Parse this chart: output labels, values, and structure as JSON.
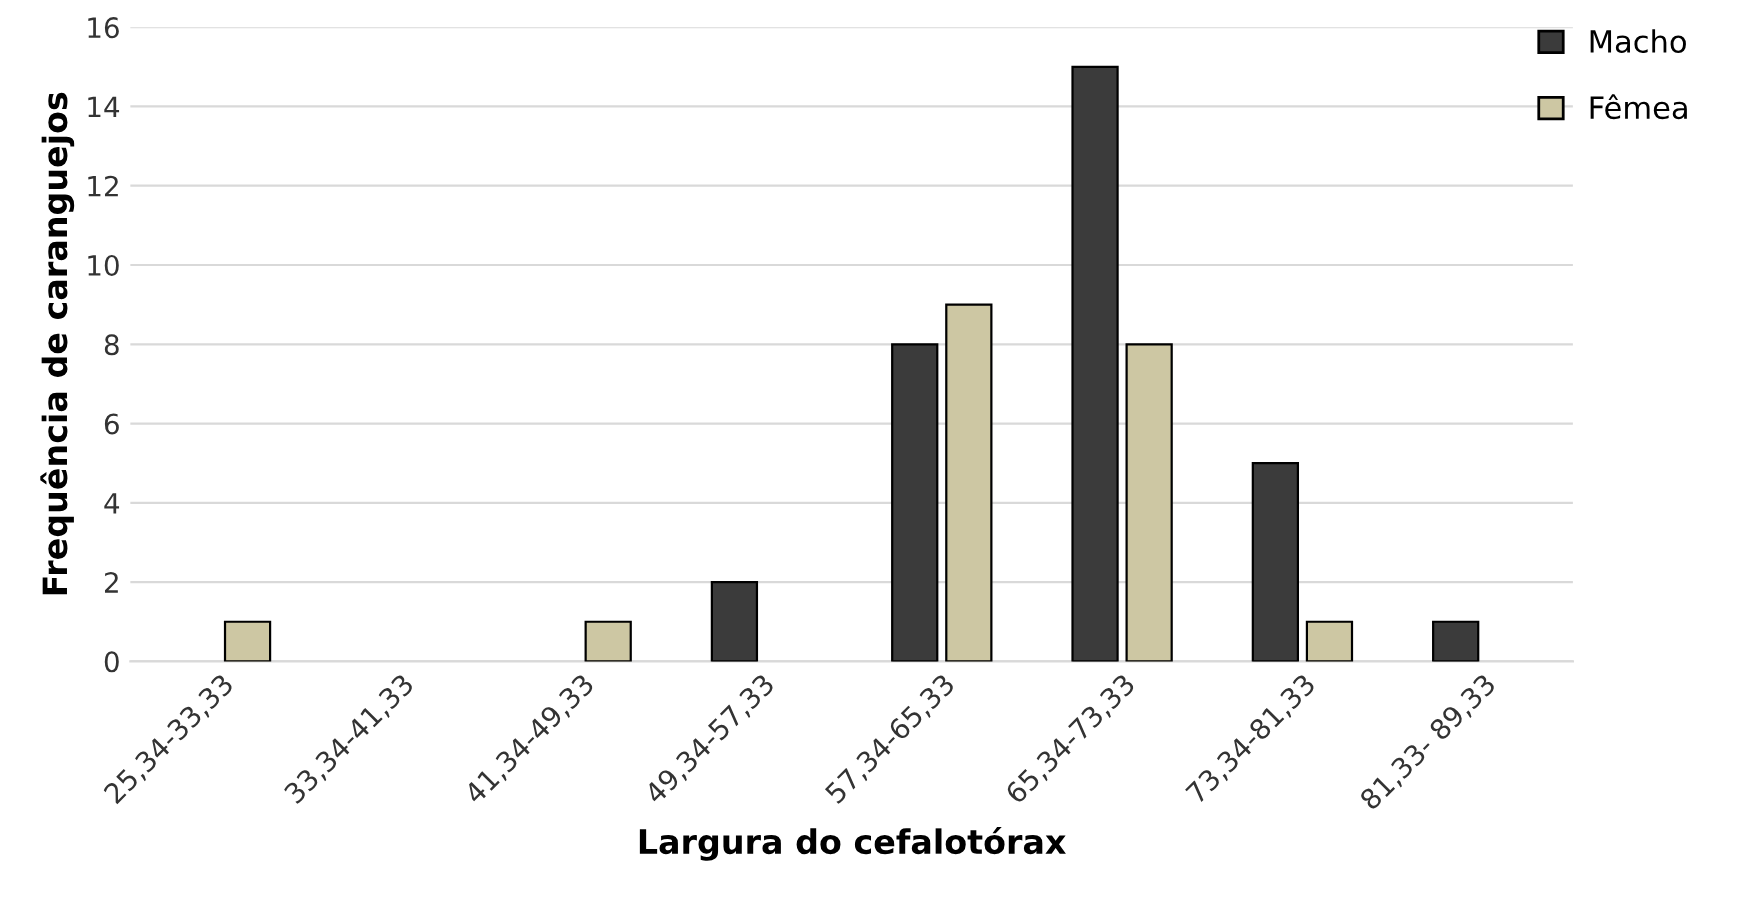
{
  "chart_data": {
    "type": "bar",
    "xlabel": "Largura do cefalotórax",
    "ylabel": "Frequência de caranguejos",
    "categories": [
      "25,34-33,33",
      "33,34-41,33",
      "41,34-49,33",
      "49,34-57,33",
      "57,34-65,33",
      "65,34-73,33",
      "73,34-81,33",
      "81,33- 89,33"
    ],
    "series": [
      {
        "name": "Macho",
        "color": "#3b3b3b",
        "values": [
          0,
          0,
          0,
          2,
          8,
          15,
          5,
          1
        ]
      },
      {
        "name": "Fêmea",
        "color": "#cdc7a3",
        "values": [
          1,
          0,
          1,
          0,
          9,
          8,
          1,
          0
        ]
      }
    ],
    "ylim": [
      0,
      16
    ],
    "yticks": [
      0,
      2,
      4,
      6,
      8,
      10,
      12,
      14,
      16
    ],
    "grid": "y",
    "legend": "top right"
  }
}
